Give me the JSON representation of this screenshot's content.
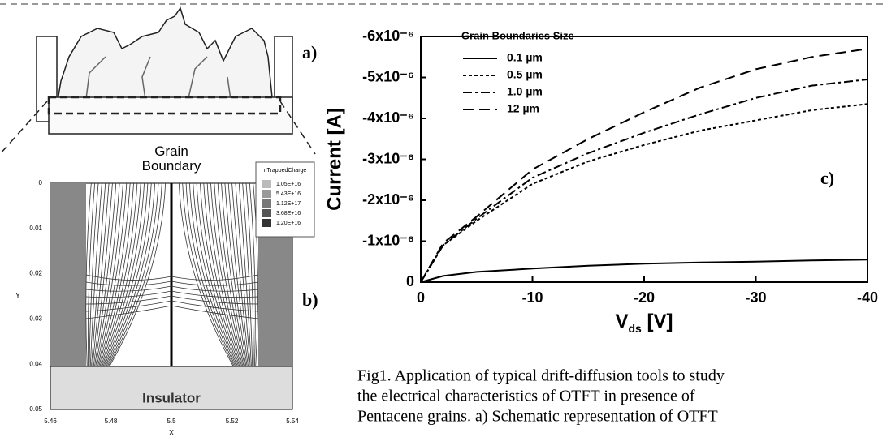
{
  "figure": {
    "panel_a": {
      "label": "a)"
    },
    "panel_b": {
      "label": "b)",
      "grain_boundary": "Grain\nBoundary",
      "insulator": "Insulator",
      "y_label": "Y",
      "x_label": "X",
      "yticks": [
        "0",
        "0.01",
        "0.02",
        "0.03",
        "0.04",
        "0.05"
      ],
      "xticks": [
        "5.46",
        "5.48",
        "5.5",
        "5.52",
        "5.54"
      ],
      "legend_title": "nTrappedCharge",
      "legend_values": [
        "1.05E+16",
        "5.43E+16",
        "1.12E+17",
        "3.68E+16",
        "1.20E+16"
      ]
    },
    "caption": [
      "Fig1. Application of typical drift-diffusion tools to study",
      "the electrical characteristics of OTFT in presence of",
      "Pentacene grains. a) Schematic representation of OTFT"
    ]
  },
  "chart_data": {
    "type": "line",
    "panel_label": "c)",
    "y_label": "Current  [A]",
    "x_label": {
      "main": "V",
      "sub": "ds",
      "rest": " [V]"
    },
    "legend_title": "Grain Boundaries Size",
    "x": [
      0,
      -2,
      -5,
      -10,
      -15,
      -20,
      -25,
      -30,
      -35,
      -40
    ],
    "series": [
      {
        "name": "0.1 µm",
        "color": "#000000",
        "dash": "solid",
        "values": [
          0,
          -1.5e-07,
          -2.5e-07,
          -3.3e-07,
          -4e-07,
          -4.5e-07,
          -4.8e-07,
          -5e-07,
          -5.3e-07,
          -5.5e-07
        ]
      },
      {
        "name": "0.5 µm",
        "color": "#000000",
        "dash": "dotted",
        "values": [
          0,
          -9e-07,
          -1.5e-06,
          -2.4e-06,
          -2.95e-06,
          -3.35e-06,
          -3.7e-06,
          -3.95e-06,
          -4.2e-06,
          -4.35e-06
        ]
      },
      {
        "name": "1.0 µm",
        "color": "#000000",
        "dash": "dashdot",
        "values": [
          0,
          -9e-07,
          -1.55e-06,
          -2.55e-06,
          -3.15e-06,
          -3.65e-06,
          -4.1e-06,
          -4.5e-06,
          -4.8e-06,
          -4.95e-06
        ]
      },
      {
        "name": "12  µm",
        "color": "#000000",
        "dash": "dashed",
        "values": [
          0,
          -9.5e-07,
          -1.6e-06,
          -2.75e-06,
          -3.5e-06,
          -4.15e-06,
          -4.75e-06,
          -5.2e-06,
          -5.5e-06,
          -5.7e-06
        ]
      }
    ],
    "xlim": [
      0,
      -40
    ],
    "xticks": [
      0,
      -10,
      -20,
      -30,
      -40
    ],
    "ylim": [
      0,
      -6e-06
    ],
    "yticks": [
      0,
      {
        "value": -1e-06,
        "label": "-1x10⁻⁶"
      },
      {
        "value": -2e-06,
        "label": "-2x10⁻⁶"
      },
      {
        "value": -3e-06,
        "label": "-3x10⁻⁶"
      },
      {
        "value": -4e-06,
        "label": "-4x10⁻⁶"
      },
      {
        "value": -5e-06,
        "label": "-5x10⁻⁶"
      },
      {
        "value": -6e-06,
        "label": "-6x10⁻⁶"
      }
    ],
    "grid": false
  }
}
